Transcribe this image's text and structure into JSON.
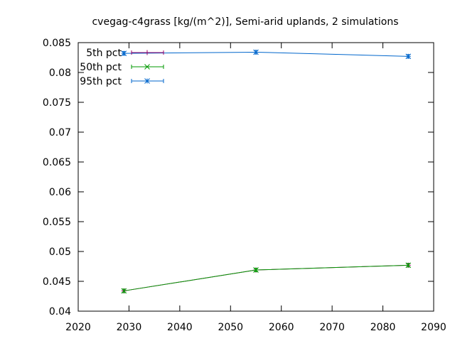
{
  "chart_data": {
    "type": "line",
    "title": "cvegag-c4grass [kg/(m^2)], Semi-arid uplands, 2 simulations",
    "xlabel": "",
    "ylabel": "",
    "xlim": [
      2020,
      2090
    ],
    "ylim": [
      0.04,
      0.085
    ],
    "x_ticks": [
      "2020",
      "2030",
      "2040",
      "2050",
      "2060",
      "2070",
      "2080",
      "2090"
    ],
    "y_ticks": [
      "0.04",
      "0.045",
      "0.05",
      "0.055",
      "0.06",
      "0.065",
      "0.07",
      "0.075",
      "0.08",
      "0.085"
    ],
    "grid": false,
    "legend_position": "top-left",
    "series": [
      {
        "name": "5th pct",
        "color": "#990066",
        "marker": "plus",
        "x": [
          2029,
          2055,
          2085
        ],
        "y": [
          0.0434,
          0.0469,
          0.0477
        ],
        "err": [
          0.0003,
          0.0003,
          0.0003
        ]
      },
      {
        "name": "50th pct",
        "color": "#009900",
        "marker": "cross",
        "x": [
          2029,
          2055,
          2085
        ],
        "y": [
          0.0434,
          0.0469,
          0.0477
        ],
        "err": [
          0.0003,
          0.0003,
          0.0003
        ]
      },
      {
        "name": "95th pct",
        "color": "#0066cc",
        "marker": "star",
        "x": [
          2029,
          2055,
          2085
        ],
        "y": [
          0.0832,
          0.0834,
          0.0827
        ],
        "err": [
          0.0003,
          0.0003,
          0.0003
        ]
      }
    ]
  }
}
